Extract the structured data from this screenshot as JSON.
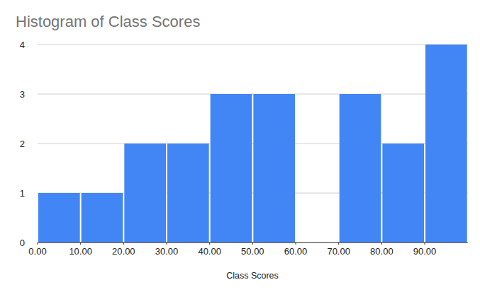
{
  "chart_data": {
    "type": "histogram",
    "title": "Histogram of Class Scores",
    "x_label": "Class Scores",
    "bins": [
      0,
      10,
      20,
      30,
      40,
      50,
      60,
      70,
      80,
      90,
      100
    ],
    "values": [
      1,
      1,
      2,
      2,
      3,
      3,
      0,
      3,
      2,
      4
    ],
    "color": "#4285f4",
    "xlim": [
      0,
      100
    ],
    "xticks": [
      {
        "value": 0,
        "label": "0.00"
      },
      {
        "value": 10,
        "label": "10.00"
      },
      {
        "value": 20,
        "label": "20.00"
      },
      {
        "value": 30,
        "label": "30.00"
      },
      {
        "value": 40,
        "label": "40.00"
      },
      {
        "value": 50,
        "label": "50.00"
      },
      {
        "value": 60,
        "label": "60.00"
      },
      {
        "value": 70,
        "label": "70.00"
      },
      {
        "value": 80,
        "label": "80.00"
      },
      {
        "value": 90,
        "label": "90.00"
      }
    ],
    "ylim": [
      0,
      4
    ],
    "yticks": [
      0,
      1,
      2,
      3,
      4
    ],
    "grid": true
  }
}
